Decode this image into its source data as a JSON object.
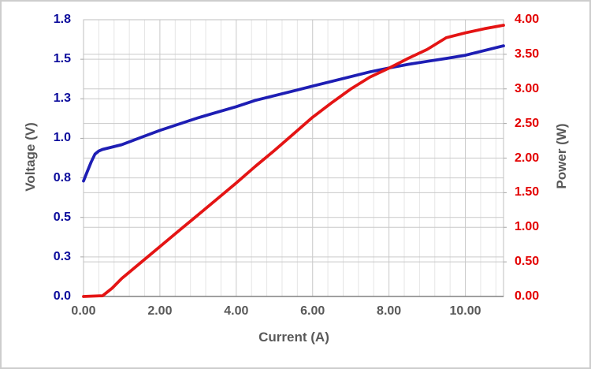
{
  "chart_data": {
    "type": "line",
    "title": "",
    "xlabel": "Current (A)",
    "ylabel_left": "Voltage (V)",
    "ylabel_right": "Power (W)",
    "grid": "both-axes-major, x-minor",
    "legend": "none",
    "x_axis": {
      "min": 0,
      "max": 11,
      "major": 2,
      "minor": 0.4,
      "tick_labels": [
        "0.00",
        "2.00",
        "4.00",
        "6.00",
        "8.00",
        "10.00"
      ]
    },
    "y_left": {
      "min": 0,
      "max": 1.75,
      "major": 0.25,
      "tick_labels": [
        "0.0",
        "0.3",
        "0.5",
        "0.8",
        "1.0",
        "1.3",
        "1.5",
        "1.8"
      ]
    },
    "y_right": {
      "min": 0,
      "max": 4,
      "major": 0.5,
      "tick_labels": [
        "0.00",
        "0.50",
        "1.00",
        "1.50",
        "2.00",
        "2.50",
        "3.00",
        "3.50",
        "4.00"
      ]
    },
    "series": [
      {
        "name": "Voltage",
        "axis": "left",
        "color": "#1e1eb4",
        "x": [
          0,
          0.1,
          0.2,
          0.3,
          0.4,
          0.5,
          1,
          1.5,
          2,
          2.5,
          3,
          3.5,
          4,
          4.5,
          5,
          5.5,
          6,
          6.5,
          7,
          7.5,
          8,
          8.5,
          9,
          9.5,
          10,
          10.5,
          11
        ],
        "y": [
          0.73,
          0.79,
          0.85,
          0.9,
          0.92,
          0.93,
          0.96,
          1.005,
          1.05,
          1.09,
          1.13,
          1.165,
          1.2,
          1.24,
          1.27,
          1.3,
          1.33,
          1.36,
          1.39,
          1.42,
          1.445,
          1.468,
          1.487,
          1.505,
          1.525,
          1.555,
          1.585
        ]
      },
      {
        "name": "Power",
        "axis": "right",
        "color": "#e41414",
        "x": [
          0,
          0.5,
          0.75,
          1,
          1.5,
          2,
          2.5,
          3,
          3.5,
          4,
          4.5,
          5,
          5.5,
          6,
          6.5,
          7,
          7.5,
          8,
          8.5,
          9,
          9.5,
          10,
          10.5,
          11
        ],
        "y": [
          0,
          0.01,
          0.12,
          0.26,
          0.49,
          0.72,
          0.95,
          1.18,
          1.41,
          1.64,
          1.88,
          2.11,
          2.35,
          2.59,
          2.8,
          3.0,
          3.17,
          3.3,
          3.44,
          3.57,
          3.74,
          3.81,
          3.87,
          3.92
        ]
      }
    ],
    "colors": {
      "voltage_series": "#1e1eb4",
      "power_series": "#e41414",
      "voltage_tick_text": "#0a0a9b",
      "power_tick_text": "#e30000",
      "axis_text": "#595959",
      "grid_major": "#c9c9c9",
      "grid_minor": "#e5e5e5",
      "plot_border": "#bfbfbf",
      "axis_line": "#808080",
      "tick_mark": "#a6a6a6"
    }
  }
}
